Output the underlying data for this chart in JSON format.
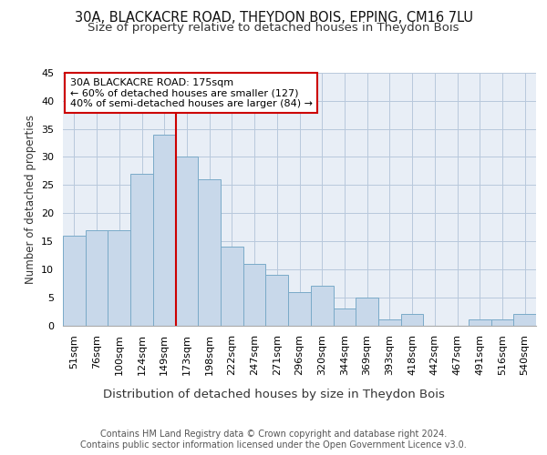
{
  "title1": "30A, BLACKACRE ROAD, THEYDON BOIS, EPPING, CM16 7LU",
  "title2": "Size of property relative to detached houses in Theydon Bois",
  "xlabel": "Distribution of detached houses by size in Theydon Bois",
  "ylabel": "Number of detached properties",
  "categories": [
    "51sqm",
    "76sqm",
    "100sqm",
    "124sqm",
    "149sqm",
    "173sqm",
    "198sqm",
    "222sqm",
    "247sqm",
    "271sqm",
    "296sqm",
    "320sqm",
    "344sqm",
    "369sqm",
    "393sqm",
    "418sqm",
    "442sqm",
    "467sqm",
    "491sqm",
    "516sqm",
    "540sqm"
  ],
  "values": [
    16,
    17,
    17,
    27,
    34,
    30,
    26,
    14,
    11,
    9,
    6,
    7,
    3,
    5,
    1,
    2,
    0,
    0,
    1,
    1,
    2
  ],
  "bar_color": "#c8d8ea",
  "bar_edge_color": "#7aaac8",
  "grid_color": "#b8c8dc",
  "background_color": "#e8eef6",
  "vline_color": "#cc0000",
  "vline_index": 5,
  "annotation_text": "30A BLACKACRE ROAD: 175sqm\n← 60% of detached houses are smaller (127)\n40% of semi-detached houses are larger (84) →",
  "annotation_box_color": "#cc0000",
  "ylim": [
    0,
    45
  ],
  "yticks": [
    0,
    5,
    10,
    15,
    20,
    25,
    30,
    35,
    40,
    45
  ],
  "footer": "Contains HM Land Registry data © Crown copyright and database right 2024.\nContains public sector information licensed under the Open Government Licence v3.0.",
  "title1_fontsize": 10.5,
  "title2_fontsize": 9.5,
  "xlabel_fontsize": 9.5,
  "ylabel_fontsize": 8.5,
  "tick_fontsize": 8,
  "annotation_fontsize": 8,
  "footer_fontsize": 7
}
